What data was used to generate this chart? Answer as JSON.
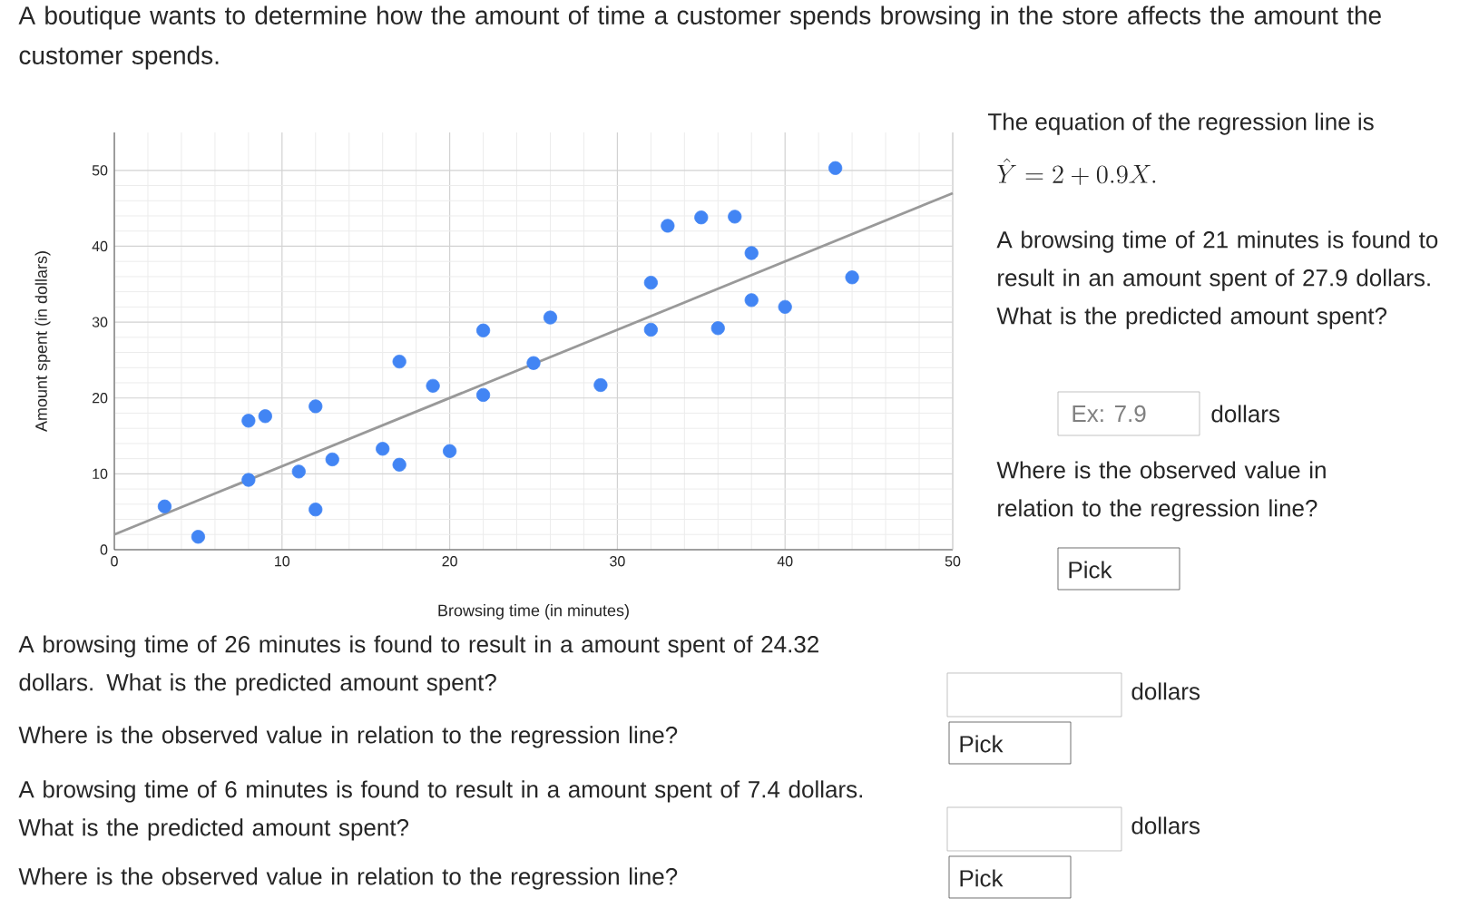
{
  "chart_data": {
    "type": "scatter",
    "title": "A boutique wants to determine how the amount of time a customer spends browsing in the store affects the amount the customer spends.",
    "xlabel": "Browsing time (in minutes)",
    "ylabel": "Amount spent (in dollars)",
    "xlim": [
      0,
      50
    ],
    "ylim": [
      0,
      55
    ],
    "xticks": [
      0,
      10,
      20,
      30,
      40,
      50
    ],
    "yticks": [
      0,
      10,
      20,
      30,
      40,
      50
    ],
    "grid": true,
    "series": [
      {
        "type": "scatter",
        "marker": "circle",
        "color": "#4285f4",
        "x": [
          3,
          5,
          8,
          9,
          8,
          11,
          12,
          12,
          13,
          16,
          17,
          17,
          19,
          20,
          22,
          22,
          25,
          26,
          29,
          32,
          32,
          33,
          35,
          37,
          36,
          38,
          38,
          40,
          43,
          44
        ],
        "values": [
          5.7,
          1.7,
          17,
          17.6,
          9.2,
          10.3,
          18.9,
          5.3,
          11.9,
          13.3,
          11.2,
          24.8,
          21.6,
          13,
          28.9,
          20.4,
          24.6,
          30.6,
          21.7,
          35.2,
          29,
          42.7,
          43.8,
          43.9,
          29.2,
          39.1,
          32.9,
          32,
          50.3,
          35.9
        ]
      },
      {
        "type": "line",
        "marker": "none",
        "color": "#999999",
        "x": [
          0,
          50
        ],
        "values": [
          2,
          47
        ]
      }
    ],
    "annotations": [
      "The equation of the regression line is",
      "\\hat{Y} = 2 + 0.9X.",
      "A browsing time of 21 minutes is found to result in an amount spent of 27.9 dollars. What is the predicted amount spent?",
      "Ex: 7.9",
      "dollars",
      "Where is the observed value in relation to the regression line?",
      "Pick",
      "A browsing time of 26 minutes is found to result in a amount spent of 24.32 dollars. What is the predicted amount spent?",
      "Where is the observed value in relation to the regression line?",
      "dollars",
      "Pick",
      "A browsing time of 6 minutes is found to result in a amount spent of 7.4 dollars. What is the predicted amount spent?",
      "Where is the observed value in relation to the regression line?",
      "dollars",
      "Pick"
    ]
  }
}
